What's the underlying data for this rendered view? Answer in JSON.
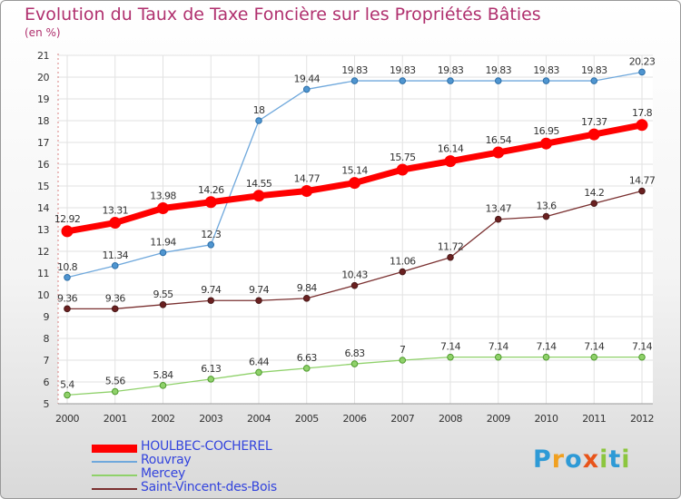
{
  "header": {
    "title": "Evolution du Taux de Taxe Foncière sur les Propriétés Bâties",
    "subtitle": "(en %)"
  },
  "chart_data": {
    "type": "line",
    "title": "Evolution du Taux de Taxe Foncière sur les Propriétés Bâties",
    "ylabel": "(en %)",
    "x": [
      "2000",
      "2001",
      "2002",
      "2003",
      "2004",
      "2005",
      "2006",
      "2007",
      "2008",
      "2009",
      "2010",
      "2011",
      "2012"
    ],
    "ylim": [
      5,
      21
    ],
    "yticks": [
      "5",
      "6",
      "7",
      "8",
      "9",
      "10",
      "11",
      "12",
      "13",
      "14",
      "15",
      "16",
      "17",
      "18",
      "19",
      "20",
      "21"
    ],
    "series": [
      {
        "name": "HOULBEC-COCHEREL",
        "color": "#ff0000",
        "values": [
          12.92,
          13.31,
          13.98,
          14.26,
          14.55,
          14.77,
          15.14,
          15.75,
          16.14,
          16.54,
          16.95,
          17.37,
          17.8
        ],
        "labels": [
          "12.92",
          "13.31",
          "13.98",
          "14.26",
          "14.55",
          "14.77",
          "15.14",
          "15.75",
          "16.14",
          "16.54",
          "16.95",
          "17.37",
          "17.8"
        ]
      },
      {
        "name": "Rouvray",
        "color": "#6fa8dc",
        "values": [
          10.8,
          11.34,
          11.94,
          12.3,
          18,
          19.44,
          19.83,
          19.83,
          19.83,
          19.83,
          19.83,
          19.83,
          20.23
        ],
        "labels": [
          "10.8",
          "11.34",
          "11.94",
          "12.3",
          "18",
          "19.44",
          "19.83",
          "19.83",
          "19.83",
          "19.83",
          "19.83",
          "19.83",
          "20.23"
        ]
      },
      {
        "name": "Mercey",
        "color": "#8fd16a",
        "values": [
          5.4,
          5.56,
          5.84,
          6.13,
          6.44,
          6.63,
          6.83,
          7,
          7.14,
          7.14,
          7.14,
          7.14,
          7.14
        ],
        "labels": [
          "5.4",
          "5.56",
          "5.84",
          "6.13",
          "6.44",
          "6.63",
          "6.83",
          "7",
          "7.14",
          "7.14",
          "7.14",
          "7.14",
          "7.14"
        ]
      },
      {
        "name": "Saint-Vincent-des-Bois",
        "color": "#7a3030",
        "values": [
          9.36,
          9.36,
          9.55,
          9.74,
          9.74,
          9.84,
          10.43,
          11.06,
          11.72,
          13.47,
          13.6,
          14.2,
          14.77
        ],
        "labels": [
          "9.36",
          "9.36",
          "9.55",
          "9.74",
          "9.74",
          "9.84",
          "10.43",
          "11.06",
          "11.72",
          "13.47",
          "13.6",
          "14.2",
          "14.77"
        ]
      }
    ],
    "legend_position": "bottom-left"
  },
  "legend": {
    "items": [
      {
        "label": "HOULBEC-COCHEREL",
        "color": "#ff0000"
      },
      {
        "label": "Rouvray",
        "color": "#6fa8dc"
      },
      {
        "label": "Mercey",
        "color": "#8fd16a"
      },
      {
        "label": "Saint-Vincent-des-Bois",
        "color": "#7a3030"
      }
    ]
  },
  "logo": {
    "letters": [
      "P",
      "r",
      "o",
      "x",
      "i",
      "t",
      "i"
    ],
    "colors": [
      "#2e9ad6",
      "#f0a020",
      "#2e9ad6",
      "#e8541a",
      "#8cc63e",
      "#2e9ad6",
      "#8cc63e"
    ]
  }
}
